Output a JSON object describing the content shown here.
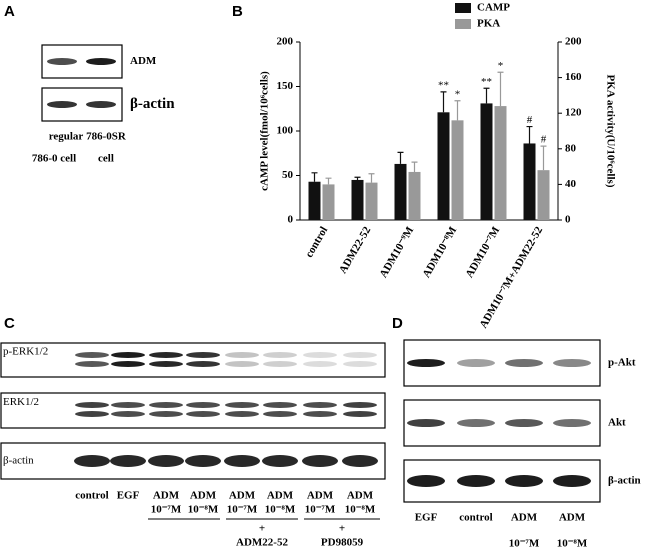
{
  "panel_a": {
    "label": "A",
    "rows": [
      "ADM",
      "β-actin"
    ],
    "lanes": [
      [
        "regular",
        "786-0 cell"
      ],
      [
        "786-0SR",
        "cell"
      ]
    ]
  },
  "chart_data": {
    "type": "bar",
    "panel_label": "B",
    "y_label": "cAMP level(fmol/10⁶cells)",
    "y2_label": "PKA activity(U/10⁶cells)",
    "categories": [
      "control",
      "ADM22-52",
      "ADM10⁻⁹M",
      "ADM10⁻⁸M",
      "ADM10⁻⁷M",
      "ADM10⁻⁷M+ADM22-52"
    ],
    "series": [
      {
        "name": "CAMP",
        "color": "#111111",
        "values": [
          43,
          45,
          63,
          121,
          131,
          86
        ],
        "errors": [
          10,
          3,
          13,
          23,
          17,
          19
        ],
        "marks": [
          null,
          null,
          null,
          "**",
          "**",
          "#"
        ]
      },
      {
        "name": "PKA",
        "color": "#999999",
        "axis": "y2",
        "values": [
          40,
          42,
          54,
          112,
          128,
          56
        ],
        "errors": [
          7,
          10,
          11,
          22,
          38,
          27
        ],
        "marks": [
          null,
          null,
          null,
          "*",
          "*",
          "#"
        ]
      }
    ],
    "ylim": [
      0,
      200
    ],
    "yticks": [
      0,
      50,
      100,
      150,
      200
    ],
    "y2lim": [
      0,
      200
    ],
    "y2ticks": [
      0,
      40,
      80,
      120,
      160,
      200
    ]
  },
  "panel_c": {
    "label": "C",
    "rows": [
      "p-ERK1/2",
      "ERK1/2",
      "β-actin"
    ],
    "lanes": [
      [
        "control"
      ],
      [
        "EGF"
      ],
      [
        "ADM",
        "10⁻⁷M"
      ],
      [
        "ADM",
        "10⁻⁸M"
      ],
      [
        "ADM",
        "10⁻⁷M"
      ],
      [
        "ADM",
        "10⁻⁸M"
      ],
      [
        "ADM",
        "10⁻⁷M"
      ],
      [
        "ADM",
        "10⁻⁸M"
      ]
    ],
    "groups": [
      [
        "+",
        "ADM22-52"
      ],
      [
        "+",
        "PD98059"
      ]
    ]
  },
  "panel_d": {
    "label": "D",
    "rows": [
      "p-Akt",
      "Akt",
      "β-actin"
    ],
    "lanes": [
      [
        "EGF"
      ],
      [
        "control"
      ],
      [
        "ADM",
        "10⁻⁷M"
      ],
      [
        "ADM",
        "10⁻⁸M"
      ]
    ]
  }
}
